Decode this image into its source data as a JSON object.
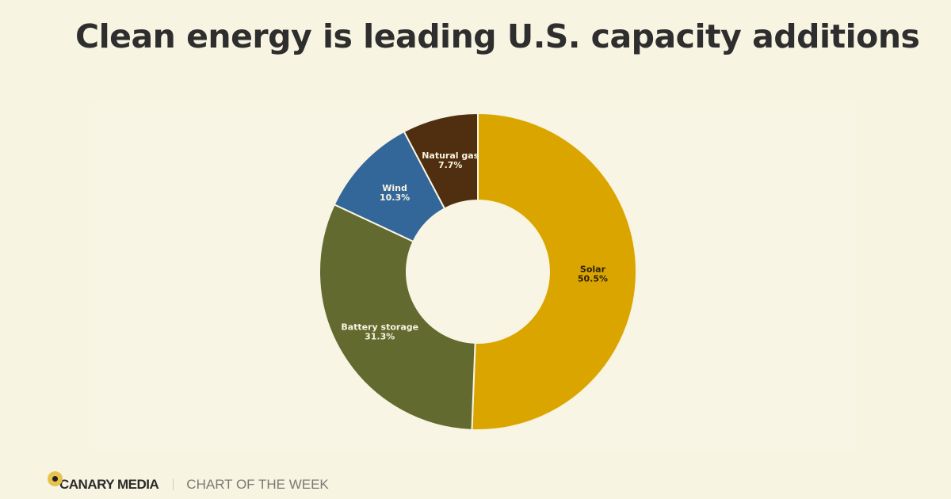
{
  "header": {
    "title": "Clean energy is leading U.S. capacity additions"
  },
  "footer": {
    "brand": "CANARY MEDIA",
    "kicker": "CHART OF THE WEEK",
    "logo_color": "#e8c24e"
  },
  "chart_data": {
    "type": "pie",
    "donut": true,
    "start": "12 o'clock, clockwise",
    "slices": [
      {
        "label": "Solar",
        "value": 50.5,
        "display": "50.5%",
        "color": "#dba500",
        "text_color": "#2a2008"
      },
      {
        "label": "Battery storage",
        "value": 31.3,
        "display": "31.3%",
        "color": "#636a2f",
        "text_color": "#f8f4e2"
      },
      {
        "label": "Wind",
        "value": 10.3,
        "display": "10.3%",
        "color": "#336699",
        "text_color": "#f8f4e2"
      },
      {
        "label": "Natural gas",
        "value": 7.7,
        "display": "7.7%",
        "color": "#4f2f10",
        "text_color": "#f8f4e2"
      }
    ]
  }
}
